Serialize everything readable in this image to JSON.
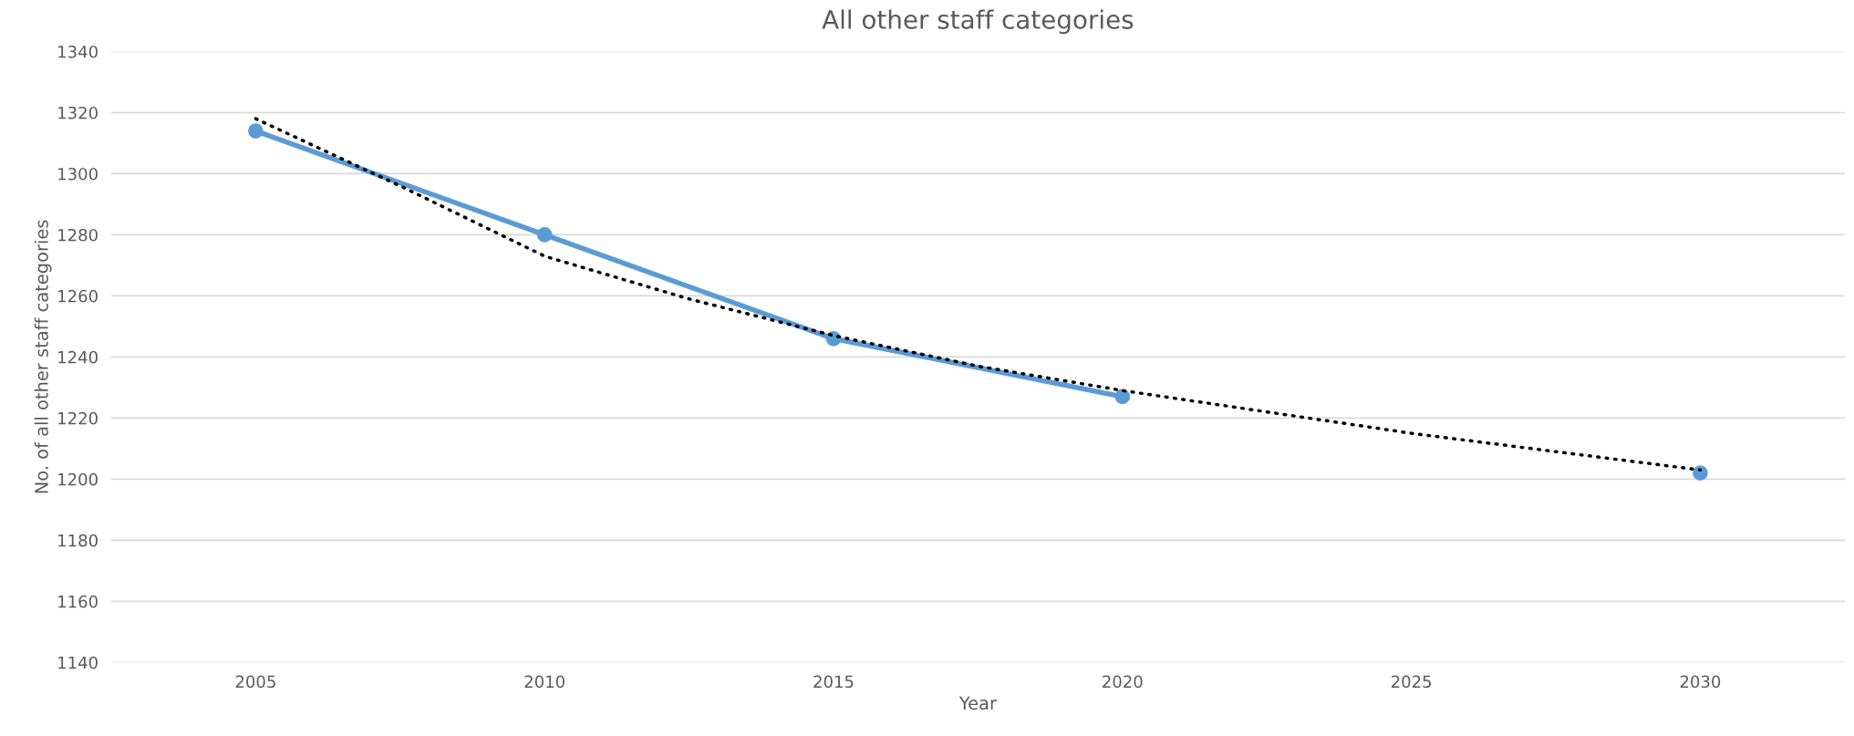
{
  "chart_data": {
    "type": "line",
    "title": "All other staff categories",
    "xlabel": "Year",
    "ylabel": "No. of all other staff categories",
    "xlim": [
      2002.5,
      2032.5
    ],
    "xticks": [
      2005,
      2010,
      2015,
      2020,
      2025,
      2030
    ],
    "ylim": [
      1140,
      1340
    ],
    "yticks": [
      1140,
      1160,
      1180,
      1200,
      1220,
      1240,
      1260,
      1280,
      1300,
      1320,
      1340
    ],
    "grid": "y",
    "legend": false,
    "series": [
      {
        "color": "#5b9bd5",
        "marker": "circle",
        "line_style": "solid",
        "x": [
          2005,
          2010,
          2015,
          2020,
          2025,
          2030
        ],
        "values": [
          1314,
          1280,
          1246,
          1227,
          null,
          1202
        ]
      },
      {
        "color": "#000000",
        "marker": "none",
        "line_style": "dotted",
        "x": [
          2005,
          2007.5,
          2010,
          2012.5,
          2015,
          2017.5,
          2020,
          2022.5,
          2025,
          2027.5,
          2030
        ],
        "values": [
          1318,
          1296,
          1273,
          1259,
          1247,
          1237,
          1229,
          1222,
          1215,
          1209,
          1203
        ]
      }
    ]
  }
}
